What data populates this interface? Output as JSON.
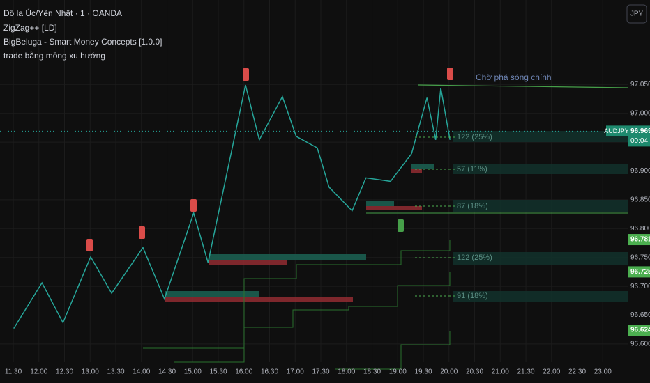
{
  "chart_data": {
    "type": "line",
    "header": [
      "Đô la Úc/Yên Nhật · 1 · OANDA",
      "ZigZag++ [LD]",
      "BigBeluga - Smart Money Concepts [1.0.0]",
      "trade bằng mồng xu hướng"
    ],
    "currency": "JPY",
    "symbol": "AUDJPY",
    "countdown": "00:04",
    "series": [
      {
        "name": "ZigZag",
        "color": "#26a69a",
        "x": [
          11.51,
          12.06,
          12.47,
          13.01,
          13.42,
          14.03,
          14.45,
          15.02,
          15.3,
          16.03,
          16.3,
          16.75,
          17.02,
          17.43,
          17.66,
          18.11,
          18.38,
          18.86,
          19.27,
          19.57,
          19.74,
          19.84,
          20.02
        ],
        "values": [
          96.627,
          96.706,
          96.637,
          96.751,
          96.688,
          96.767,
          96.678,
          96.827,
          96.741,
          97.049,
          96.954,
          97.029,
          96.96,
          96.94,
          96.872,
          96.831,
          96.888,
          96.882,
          96.93,
          97.027,
          96.954,
          97.044,
          96.954
        ]
      }
    ],
    "current_price": {
      "value": 96.969,
      "label": "96.969"
    },
    "price_labels": [
      {
        "value": 96.781,
        "label": "96.781"
      },
      {
        "value": 96.725,
        "label": "96.725"
      },
      {
        "value": 96.624,
        "label": "96.624"
      }
    ],
    "annotations": [
      "Chờ phá sóng chính",
      "122 (25%)",
      "57 (11%)",
      "87 (18%)",
      "122 (25%)",
      "91 (18%)"
    ],
    "ylim": [
      96.5685,
      97.1965
    ],
    "yticks": [
      {
        "value": 96.6,
        "label": "96.600"
      },
      {
        "value": 96.65,
        "label": "96.650"
      },
      {
        "value": 96.7,
        "label": "96.700"
      },
      {
        "value": 96.75,
        "label": "96.750"
      },
      {
        "value": 96.8,
        "label": "96.800"
      },
      {
        "value": 96.85,
        "label": "96.850"
      },
      {
        "value": 96.9,
        "label": "96.900"
      },
      {
        "value": 96.95,
        "label": "96.950"
      },
      {
        "value": 97.0,
        "label": "97.000"
      },
      {
        "value": 97.05,
        "label": "97.050"
      }
    ],
    "xlim": [
      11.2415,
      23.486
    ],
    "xticks": [
      {
        "value": 11.5,
        "label": "11:30"
      },
      {
        "value": 12,
        "label": "12:00"
      },
      {
        "value": 12.5,
        "label": "12:30"
      },
      {
        "value": 13,
        "label": "13:00"
      },
      {
        "value": 13.5,
        "label": "13:30"
      },
      {
        "value": 14,
        "label": "14:00"
      },
      {
        "value": 14.5,
        "label": "14:30"
      },
      {
        "value": 15,
        "label": "15:00"
      },
      {
        "value": 15.5,
        "label": "15:30"
      },
      {
        "value": 16,
        "label": "16:00"
      },
      {
        "value": 16.5,
        "label": "16:30"
      },
      {
        "value": 17,
        "label": "17:00"
      },
      {
        "value": 17.5,
        "label": "17:30"
      },
      {
        "value": 18,
        "label": "18:00"
      },
      {
        "value": 18.5,
        "label": "18:30"
      },
      {
        "value": 19,
        "label": "19:00"
      },
      {
        "value": 19.5,
        "label": "19:30"
      },
      {
        "value": 20,
        "label": "20:00"
      },
      {
        "value": 20.5,
        "label": "20:30"
      },
      {
        "value": 21,
        "label": "21:00"
      },
      {
        "value": 21.5,
        "label": "21:30"
      },
      {
        "value": 22,
        "label": "22:00"
      },
      {
        "value": 22.5,
        "label": "22:30"
      },
      {
        "value": 23,
        "label": "23:00"
      }
    ],
    "grid": true
  }
}
